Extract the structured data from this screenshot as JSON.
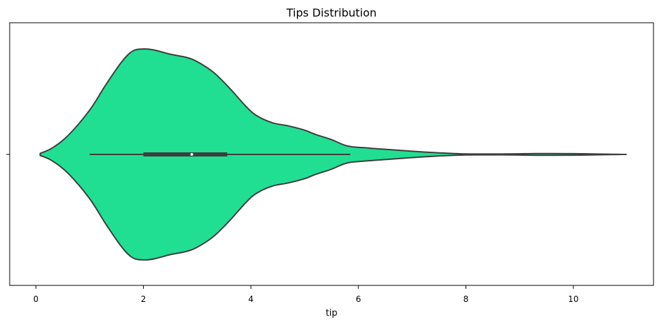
{
  "chart_data": {
    "type": "violin",
    "title": "Tips Distribution",
    "xlabel": "tip",
    "ylabel": "",
    "xlim": [
      -0.4,
      11.6
    ],
    "xticks": [
      0,
      2,
      4,
      6,
      8,
      10
    ],
    "xtick_labels": [
      "0",
      "2",
      "4",
      "6",
      "8",
      "10"
    ],
    "grid": false,
    "fill_color": "#20df92",
    "edge_color": "#3d3d3d",
    "median_color": "#ffffff",
    "density": {
      "x": [
        0.08,
        0.3,
        0.6,
        1.0,
        1.3,
        1.6,
        1.8,
        2.0,
        2.2,
        2.5,
        2.8,
        3.0,
        3.3,
        3.6,
        3.9,
        4.1,
        4.4,
        4.7,
        5.0,
        5.2,
        5.5,
        5.8,
        6.2,
        6.6,
        7.0,
        7.5,
        8.0,
        8.5,
        9.0,
        9.3,
        9.6,
        10.0,
        10.4,
        10.92
      ],
      "width": [
        0.01,
        0.06,
        0.18,
        0.42,
        0.66,
        0.88,
        0.98,
        1.0,
        0.99,
        0.95,
        0.92,
        0.88,
        0.78,
        0.63,
        0.46,
        0.37,
        0.3,
        0.27,
        0.23,
        0.19,
        0.14,
        0.08,
        0.06,
        0.045,
        0.03,
        0.015,
        0.005,
        0.004,
        0.006,
        0.008,
        0.008,
        0.007,
        0.004,
        0.0
      ]
    },
    "box": {
      "whisker_low": 1.0,
      "q1": 2.0,
      "median": 2.9,
      "q3": 3.56,
      "whisker_high": 5.85
    }
  }
}
